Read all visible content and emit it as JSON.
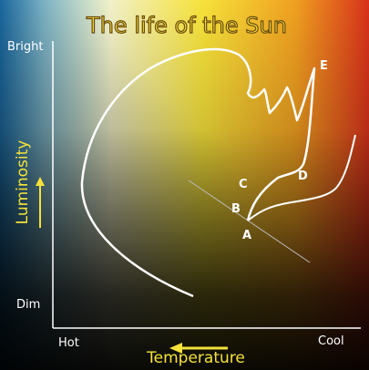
{
  "title": "The life of the Sun",
  "y_axis": {
    "label": "Luminosity",
    "top": "Bright",
    "bottom": "Dim"
  },
  "x_axis": {
    "label": "Temperature",
    "left": "Hot",
    "right": "Cool"
  },
  "points": [
    {
      "label": "A"
    },
    {
      "label": "B"
    },
    {
      "label": "C"
    },
    {
      "label": "D"
    },
    {
      "label": "E"
    }
  ]
}
